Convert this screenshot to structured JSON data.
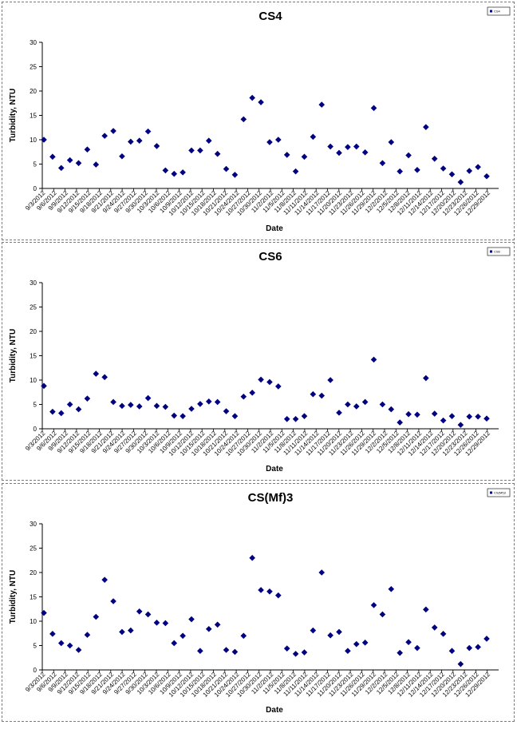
{
  "chart_data": [
    {
      "type": "scatter",
      "title": "CS4",
      "xlabel": "Date",
      "ylabel": "Turbidity, NTU",
      "ylim": [
        0,
        30
      ],
      "yticks": [
        0,
        5,
        10,
        15,
        20,
        25,
        30
      ],
      "legend": "top-right",
      "legend_label": "CS4",
      "marker_color": "#000080",
      "xtick_labels": [
        "9/3/2012",
        "9/6/2012",
        "9/9/2012",
        "9/12/2012",
        "9/15/2012",
        "9/18/2012",
        "9/21/2012",
        "9/24/2012",
        "9/27/2012",
        "9/30/2012",
        "10/3/2012",
        "10/6/2012",
        "10/9/2012",
        "10/12/2012",
        "10/15/2012",
        "10/18/2012",
        "10/21/2012",
        "10/24/2012",
        "10/27/2012",
        "10/30/2012",
        "11/2/2012",
        "11/5/2012",
        "11/8/2012",
        "11/11/2012",
        "11/14/2012",
        "11/17/2012",
        "11/20/2012",
        "11/23/2012",
        "11/26/2012",
        "11/29/2012",
        "12/2/2012",
        "12/5/2012",
        "12/8/2012",
        "12/11/2012",
        "12/14/2012",
        "12/17/2012",
        "12/20/2012",
        "12/23/2012",
        "12/26/2012",
        "12/29/2012"
      ],
      "y": [
        10,
        6.5,
        4.2,
        5.8,
        5.2,
        8,
        4.9,
        10.8,
        11.8,
        6.6,
        9.6,
        9.8,
        11.7,
        8.7,
        3.7,
        3,
        3.3,
        7.8,
        7.8,
        9.8,
        7.1,
        4,
        2.8,
        14.2,
        18.6,
        17.7,
        9.5,
        10,
        6.9,
        3.5,
        6.5,
        10.6,
        17.2,
        8.6,
        7.3,
        8.5,
        8.6,
        7.4,
        16.5,
        5.2,
        9.5,
        3.5,
        6.8,
        3.8,
        12.6,
        6.1,
        4.1,
        2.9,
        1.3,
        3.6,
        4.4,
        2.5
      ]
    },
    {
      "type": "scatter",
      "title": "CS6",
      "xlabel": "Date",
      "ylabel": "Turbidity, NTU",
      "ylim": [
        0,
        30
      ],
      "yticks": [
        0,
        5,
        10,
        15,
        20,
        25,
        30
      ],
      "legend": "top-right",
      "legend_label": "CS6",
      "marker_color": "#000080",
      "xtick_labels": [
        "9/3/2012",
        "9/6/2012",
        "9/9/2012",
        "9/12/2012",
        "9/15/2012",
        "9/18/2012",
        "9/21/2012",
        "9/24/2012",
        "9/27/2012",
        "9/30/2012",
        "10/3/2012",
        "10/6/2012",
        "10/9/2012",
        "10/12/2012",
        "10/15/2012",
        "10/18/2012",
        "10/21/2012",
        "10/24/2012",
        "10/27/2012",
        "10/30/2012",
        "11/2/2012",
        "11/5/2012",
        "11/8/2012",
        "11/11/2012",
        "11/14/2012",
        "11/17/2012",
        "11/20/2012",
        "11/23/2012",
        "11/26/2012",
        "11/29/2012",
        "12/2/2012",
        "12/5/2012",
        "12/8/2012",
        "12/11/2012",
        "12/14/2012",
        "12/17/2012",
        "12/20/2012",
        "12/23/2012",
        "12/26/2012",
        "12/29/2012"
      ],
      "y": [
        8.8,
        3.5,
        3.2,
        5,
        4,
        6.2,
        11.3,
        10.6,
        5.5,
        4.7,
        4.9,
        4.6,
        6.3,
        4.7,
        4.5,
        2.7,
        2.6,
        4.1,
        5.1,
        5.6,
        5.5,
        3.6,
        2.6,
        6.6,
        7.4,
        10.1,
        9.6,
        8.7,
        2,
        2,
        2.6,
        7.1,
        6.8,
        10,
        3.3,
        5,
        4.6,
        5.5,
        14.2,
        5,
        4,
        1.3,
        3,
        2.9,
        10.4,
        3.1,
        1.7,
        2.6,
        0.8,
        2.5,
        2.5,
        2.1
      ]
    },
    {
      "type": "scatter",
      "title": "CS(Mf)3",
      "xlabel": "Date",
      "ylabel": "Turbidity, NTU",
      "ylim": [
        0,
        30
      ],
      "yticks": [
        0,
        5,
        10,
        15,
        20,
        25,
        30
      ],
      "legend": "top-right",
      "legend_label": "CS(Mf)3",
      "marker_color": "#000080",
      "xtick_labels": [
        "9/3/2012",
        "9/6/2012",
        "9/9/2012",
        "9/12/2012",
        "9/15/2012",
        "9/18/2012",
        "9/21/2012",
        "9/24/2012",
        "9/27/2012",
        "9/30/2012",
        "10/3/2012",
        "10/6/2012",
        "10/9/2012",
        "10/12/2012",
        "10/15/2012",
        "10/18/2012",
        "10/21/2012",
        "10/24/2012",
        "10/27/2012",
        "10/30/2012",
        "11/2/2012",
        "11/5/2012",
        "11/8/2012",
        "11/11/2012",
        "11/14/2012",
        "11/17/2012",
        "11/20/2012",
        "11/23/2012",
        "11/26/2012",
        "11/29/2012",
        "12/2/2012",
        "12/5/2012",
        "12/8/2012",
        "12/11/2012",
        "12/14/2012",
        "12/17/2012",
        "12/20/2012",
        "12/23/2012",
        "12/26/2012",
        "12/29/2012"
      ],
      "y": [
        11.7,
        7.4,
        5.5,
        5,
        4.1,
        7.2,
        10.9,
        18.5,
        14.1,
        7.8,
        8.1,
        12,
        11.4,
        9.7,
        9.6,
        5.5,
        7,
        10.4,
        3.9,
        8.4,
        9.3,
        4.1,
        3.7,
        7,
        23,
        16.4,
        16.1,
        15.3,
        4.4,
        3.3,
        3.6,
        8.1,
        20,
        7.1,
        7.8,
        3.9,
        5.3,
        5.6,
        13.3,
        11.4,
        16.6,
        3.5,
        5.7,
        4.5,
        12.4,
        8.7,
        7.4,
        3.9,
        1.2,
        4.5,
        4.7,
        6.4
      ]
    }
  ]
}
